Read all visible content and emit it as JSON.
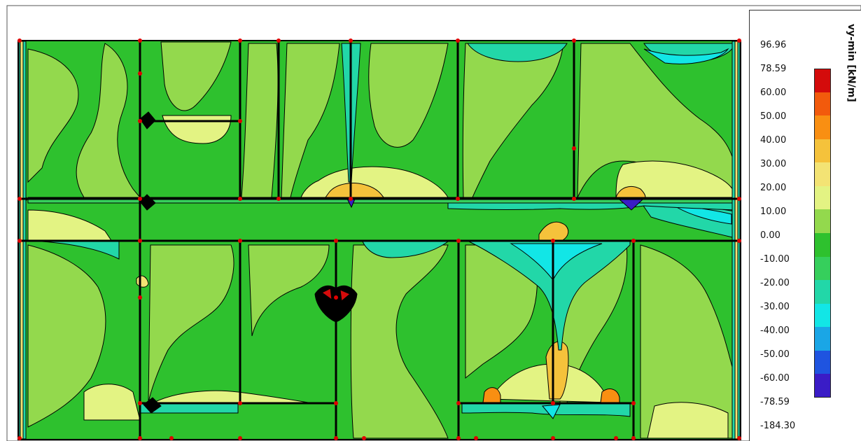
{
  "legend": {
    "title": "vy-min [kN/m]",
    "labels": [
      "96.96",
      "78.59",
      "60.00",
      "50.00",
      "40.00",
      "30.00",
      "20.00",
      "10.00",
      "0.00",
      "-10.00",
      "-20.00",
      "-30.00",
      "-40.00",
      "-50.00",
      "-60.00",
      "-78.59",
      "-184.30"
    ],
    "bands": [
      {
        "from": "78.59",
        "to": "60.00",
        "color": "#d40b0b"
      },
      {
        "from": "60.00",
        "to": "50.00",
        "color": "#f25a0c"
      },
      {
        "from": "50.00",
        "to": "40.00",
        "color": "#f98f12"
      },
      {
        "from": "40.00",
        "to": "30.00",
        "color": "#f5c23b"
      },
      {
        "from": "30.00",
        "to": "20.00",
        "color": "#f3e374"
      },
      {
        "from": "20.00",
        "to": "10.00",
        "color": "#e3f383"
      },
      {
        "from": "10.00",
        "to": "0.00",
        "color": "#93d94d"
      },
      {
        "from": "0.00",
        "to": "-10.00",
        "color": "#2ec12e"
      },
      {
        "from": "-10.00",
        "to": "-20.00",
        "color": "#36cf5c"
      },
      {
        "from": "-20.00",
        "to": "-30.00",
        "color": "#22d7a8"
      },
      {
        "from": "-30.00",
        "to": "-40.00",
        "color": "#12e6e6"
      },
      {
        "from": "-40.00",
        "to": "-50.00",
        "color": "#1aa6e6"
      },
      {
        "from": "-50.00",
        "to": "-60.00",
        "color": "#1f54e0"
      },
      {
        "from": "-60.00",
        "to": "-78.59",
        "color": "#3a1cc6"
      }
    ]
  },
  "colors": {
    "background": "#2ec12e",
    "line": "#000000",
    "node": "#e00000"
  }
}
